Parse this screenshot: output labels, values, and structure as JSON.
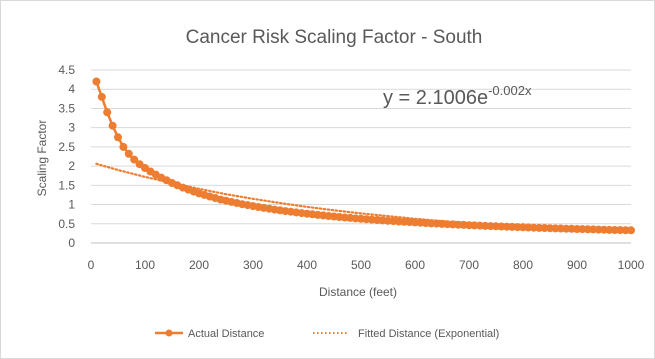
{
  "chart_data": {
    "type": "scatter",
    "title": "Cancer Risk Scaling Factor - South",
    "xlabel": "Distance (feet)",
    "ylabel": "Scaling Factor",
    "xlim": [
      0,
      1000
    ],
    "ylim": [
      0,
      4.5
    ],
    "x_ticks": [
      "0",
      "100",
      "200",
      "300",
      "400",
      "500",
      "600",
      "700",
      "800",
      "900",
      "1000"
    ],
    "y_ticks": [
      "0",
      "0.5",
      "1",
      "1.5",
      "2",
      "2.5",
      "3",
      "3.5",
      "4",
      "4.5"
    ],
    "grid": true,
    "legend_position": "bottom",
    "annotation": {
      "base": "y = 2.1006e",
      "exponent": "-0.002x"
    },
    "series": [
      {
        "name": "Actual Distance",
        "style": "line-with-markers",
        "color": "#ed7d31",
        "x": [
          10,
          20,
          30,
          40,
          50,
          60,
          70,
          80,
          90,
          100,
          110,
          120,
          130,
          140,
          150,
          160,
          170,
          180,
          190,
          200,
          210,
          220,
          230,
          240,
          250,
          260,
          270,
          280,
          290,
          300,
          310,
          320,
          330,
          340,
          350,
          360,
          370,
          380,
          390,
          400,
          410,
          420,
          430,
          440,
          450,
          460,
          470,
          480,
          490,
          500,
          510,
          520,
          530,
          540,
          550,
          560,
          570,
          580,
          590,
          600,
          610,
          620,
          630,
          640,
          650,
          660,
          670,
          680,
          690,
          700,
          710,
          720,
          730,
          740,
          750,
          760,
          770,
          780,
          790,
          800,
          810,
          820,
          830,
          840,
          850,
          860,
          870,
          880,
          890,
          900,
          910,
          920,
          930,
          940,
          950,
          960,
          970,
          980,
          990,
          1000
        ],
        "y": [
          4.2,
          3.8,
          3.4,
          3.05,
          2.75,
          2.5,
          2.32,
          2.17,
          2.05,
          1.95,
          1.86,
          1.78,
          1.7,
          1.63,
          1.56,
          1.5,
          1.44,
          1.39,
          1.34,
          1.29,
          1.25,
          1.21,
          1.17,
          1.13,
          1.1,
          1.07,
          1.04,
          1.01,
          0.985,
          0.96,
          0.936,
          0.913,
          0.891,
          0.87,
          0.85,
          0.831,
          0.813,
          0.795,
          0.778,
          0.762,
          0.746,
          0.731,
          0.717,
          0.703,
          0.69,
          0.677,
          0.664,
          0.652,
          0.641,
          0.63,
          0.619,
          0.608,
          0.598,
          0.588,
          0.578,
          0.569,
          0.56,
          0.551,
          0.543,
          0.535,
          0.527,
          0.519,
          0.511,
          0.504,
          0.497,
          0.49,
          0.483,
          0.476,
          0.47,
          0.464,
          0.458,
          0.452,
          0.446,
          0.44,
          0.434,
          0.429,
          0.424,
          0.419,
          0.414,
          0.409,
          0.404,
          0.399,
          0.394,
          0.389,
          0.385,
          0.381,
          0.377,
          0.373,
          0.369,
          0.365,
          0.361,
          0.357,
          0.353,
          0.349,
          0.345,
          0.342,
          0.339,
          0.336,
          0.333,
          0.33
        ]
      },
      {
        "name": "Fitted Distance (Exponential)",
        "style": "dotted-line",
        "color": "#ed7d31",
        "x": [
          10,
          50,
          100,
          150,
          200,
          250,
          300,
          350,
          400,
          450,
          500,
          550,
          600,
          650,
          700,
          750,
          800,
          850,
          900,
          950,
          1000
        ],
        "y": [
          2.06,
          1.9,
          1.72,
          1.56,
          1.41,
          1.27,
          1.15,
          1.04,
          0.94,
          0.85,
          0.77,
          0.7,
          0.63,
          0.57,
          0.52,
          0.47,
          0.42,
          0.38,
          0.35,
          0.31,
          0.28
        ]
      }
    ]
  }
}
